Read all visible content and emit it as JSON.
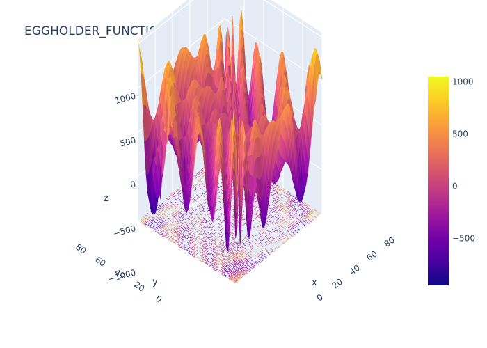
{
  "chart_data": {
    "type": "surface",
    "title": "EGGHOLDER_FUNCTION",
    "x_label": "x",
    "y_label": "y",
    "z_label": "z",
    "x_ticks": [
      "0",
      "20",
      "40",
      "60",
      "80"
    ],
    "y_ticks": [
      "0",
      "20",
      "40",
      "60",
      "80"
    ],
    "z_ticks": [
      "1000",
      "500",
      "0",
      "−500",
      "−1000"
    ],
    "x_range": [
      0,
      100
    ],
    "y_range": [
      0,
      100
    ],
    "z_range": [
      -1000,
      1050
    ],
    "colorbar": {
      "ticks": [
        "1000",
        "500",
        "0",
        "−500"
      ],
      "tick_values": [
        1000,
        500,
        0,
        -500
      ],
      "range": [
        -950,
        1050
      ],
      "colorscale": [
        "#0d0887",
        "#46039f",
        "#7201a8",
        "#9c179e",
        "#bd3786",
        "#d8576b",
        "#ed7953",
        "#fb9f3a",
        "#fdca26",
        "#f0f921"
      ]
    },
    "contours_on_floor": true,
    "grid": true,
    "scene_background": "#e5ecf6"
  }
}
